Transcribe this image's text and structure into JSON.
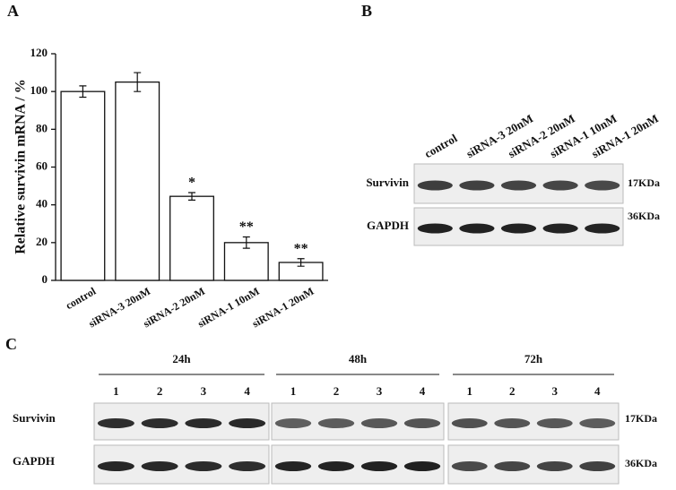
{
  "chart_data": {
    "type": "bar",
    "ylabel": "Relative survivin mRNA / %",
    "categories": [
      "control",
      "siRNA-3 20nM",
      "siRNA-2 20nM",
      "siRNA-1 10nM",
      "siRNA-1 20nM"
    ],
    "values": [
      100,
      105,
      44.5,
      20,
      9.5
    ],
    "errors": [
      3,
      5,
      2,
      3,
      2
    ],
    "color": "#ffffff",
    "ylim": [
      0,
      120
    ],
    "yticks": [
      0,
      20,
      40,
      60,
      80,
      100,
      120
    ],
    "annotations": [
      {
        "x": "siRNA-2 20nM",
        "text": "*"
      },
      {
        "x": "siRNA-1 10nM",
        "text": "**"
      },
      {
        "x": "siRNA-1 20nM",
        "text": "**"
      }
    ]
  },
  "panel_labels": [
    "A",
    "B",
    "C"
  ],
  "panel_b": {
    "lanes": [
      "control",
      "siRNA-3 20nM",
      "siRNA-2 20nM",
      "siRNA-1 10nM",
      "siRNA-1 20nM"
    ],
    "rows": [
      "Survivin",
      "GAPDH"
    ],
    "sizes": [
      "17KDa",
      "36KDa"
    ]
  },
  "panel_c": {
    "groups": [
      {
        "label": "24h",
        "lanes": [
          "1",
          "2",
          "3",
          "4"
        ]
      },
      {
        "label": "48h",
        "lanes": [
          "1",
          "2",
          "3",
          "4"
        ]
      },
      {
        "label": "72h",
        "lanes": [
          "1",
          "2",
          "3",
          "4"
        ]
      }
    ],
    "rows": [
      "Survivin",
      "GAPDH"
    ],
    "sizes": [
      "17KDa",
      "36KDa"
    ]
  }
}
